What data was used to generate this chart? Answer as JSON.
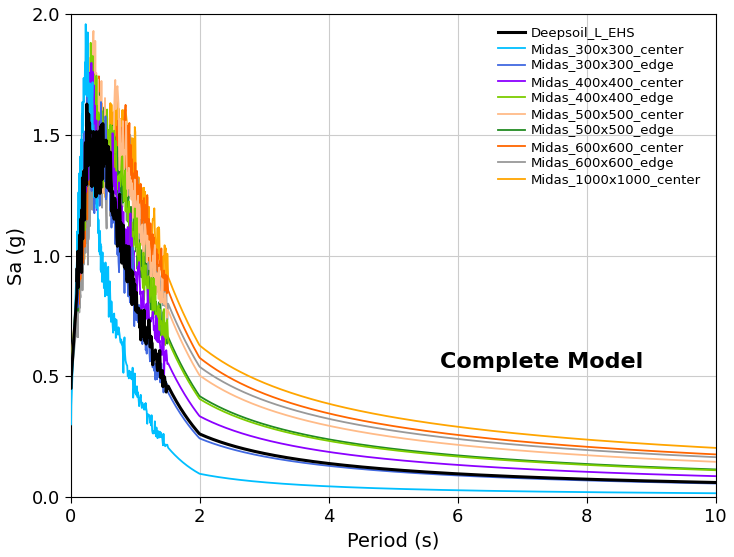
{
  "xlabel": "Period (s)",
  "ylabel": "Sa (g)",
  "annotation": "Complete Model",
  "xlim": [
    0,
    10
  ],
  "ylim": [
    0,
    2
  ],
  "xticks": [
    0,
    2,
    4,
    6,
    8,
    10
  ],
  "yticks": [
    0,
    0.5,
    1.0,
    1.5,
    2.0
  ],
  "series": [
    {
      "label": "Deepsoil_L_EHS",
      "color": "#000000",
      "lw": 2.2,
      "zorder": 10
    },
    {
      "label": "Midas_300x300_center",
      "color": "#00BFFF",
      "lw": 1.3,
      "zorder": 9
    },
    {
      "label": "Midas_300x300_edge",
      "color": "#4169E1",
      "lw": 1.3,
      "zorder": 8
    },
    {
      "label": "Midas_400x400_center",
      "color": "#8B00FF",
      "lw": 1.3,
      "zorder": 7
    },
    {
      "label": "Midas_400x400_edge",
      "color": "#7CCD00",
      "lw": 1.3,
      "zorder": 6
    },
    {
      "label": "Midas_500x500_center",
      "color": "#FFBB88",
      "lw": 1.3,
      "zorder": 5
    },
    {
      "label": "Midas_500x500_edge",
      "color": "#228B22",
      "lw": 1.3,
      "zorder": 4
    },
    {
      "label": "Midas_600x600_center",
      "color": "#FF6600",
      "lw": 1.3,
      "zorder": 3
    },
    {
      "label": "Midas_600x600_edge",
      "color": "#999999",
      "lw": 1.3,
      "zorder": 2
    },
    {
      "label": "Midas_1000x1000_center",
      "color": "#FFA500",
      "lw": 1.3,
      "zorder": 1
    }
  ],
  "background_color": "#ffffff",
  "grid_color": "#cccccc"
}
